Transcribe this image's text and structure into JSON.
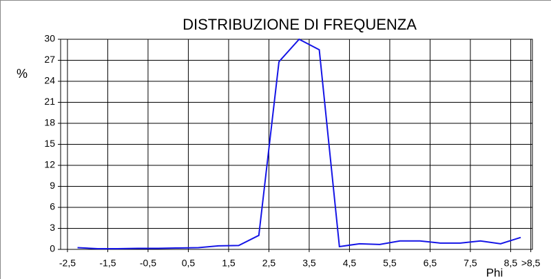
{
  "chart_data": {
    "type": "line",
    "title": "DISTRIBUZIONE DI FREQUENZA",
    "x_label": "Phi",
    "y_label": "%",
    "x": [
      -2.25,
      -1.75,
      -1.25,
      -0.75,
      -0.25,
      0.25,
      0.75,
      1.25,
      1.75,
      2.25,
      2.75,
      3.25,
      3.75,
      4.25,
      4.75,
      5.25,
      5.75,
      6.25,
      6.75,
      7.25,
      7.75,
      8.25,
      8.75
    ],
    "series": [
      {
        "name": "%",
        "color": "#1414e6",
        "values": [
          0.25,
          0.1,
          0.1,
          0.15,
          0.15,
          0.2,
          0.25,
          0.5,
          0.55,
          2.0,
          26.8,
          30,
          28.5,
          0.4,
          0.8,
          0.7,
          1.2,
          1.2,
          0.9,
          0.9,
          1.2,
          0.8,
          1.7
        ]
      }
    ],
    "xlim": [
      -2.67,
      9.04
    ],
    "xticks": [
      {
        "value": -2.5,
        "label": "-2,5"
      },
      {
        "value": -1.5,
        "label": "-1,5"
      },
      {
        "value": -0.5,
        "label": "-0,5"
      },
      {
        "value": 0.5,
        "label": "0,5"
      },
      {
        "value": 1.5,
        "label": "1,5"
      },
      {
        "value": 2.5,
        "label": "2,5"
      },
      {
        "value": 3.5,
        "label": "3,5"
      },
      {
        "value": 4.5,
        "label": "4,5"
      },
      {
        "value": 5.5,
        "label": "5,5"
      },
      {
        "value": 6.5,
        "label": "6,5"
      },
      {
        "value": 7.5,
        "label": "7,5"
      },
      {
        "value": 8.5,
        "label": "8,5"
      },
      {
        "value": 9.0,
        "label": ">8,5"
      }
    ],
    "ylim": [
      0,
      30
    ],
    "yticks": [
      0,
      3,
      6,
      9,
      12,
      15,
      18,
      21,
      24,
      27,
      30
    ],
    "grid": true
  }
}
